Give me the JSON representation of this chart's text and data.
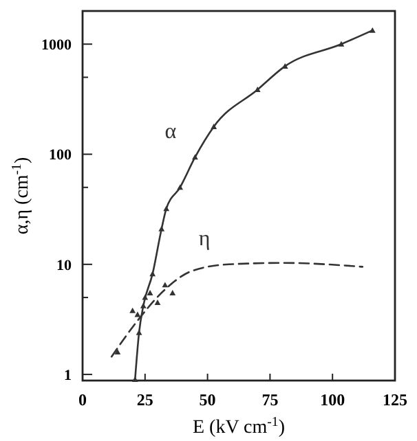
{
  "chart_data": {
    "type": "line",
    "xlabel": "E (kV cm$^{-1}$)",
    "ylabel": "α,η (cm$^{-1}$)",
    "log": "y",
    "xlim": [
      0,
      125
    ],
    "xticks": [
      0,
      25,
      50,
      75,
      100,
      125
    ],
    "ylim": [
      0.88,
      2000
    ],
    "yticks": [
      1,
      {
        "value": 5,
        "label": null
      },
      10,
      {
        "value": 50,
        "label": null
      },
      100,
      {
        "value": 500,
        "label": null
      },
      1000
    ],
    "grid": false,
    "series": [
      {
        "name": "α",
        "color": "#333333",
        "line_style": "solid",
        "marker": "triangle",
        "x": [
          21,
          22.6,
          24.3,
          28,
          31.6,
          33.5,
          39,
          45,
          52.5,
          70,
          81,
          103.5,
          116
        ],
        "values": [
          0.9,
          2.4,
          4.2,
          8.2,
          21,
          32,
          50,
          94,
          178,
          386,
          630,
          1000,
          1333
        ]
      },
      {
        "name": "η",
        "color": "#333333",
        "line_style": "dashed",
        "marker": "none",
        "x": [
          11.6,
          21.6,
          32.6,
          43.7,
          58.6,
          80.6,
          112
        ],
        "values": [
          1.45,
          3,
          5.8,
          8.7,
          10,
          10.3,
          9.5
        ]
      },
      {
        "color": "#333333",
        "type": "scatter",
        "marker": "triangle",
        "x": [
          14,
          20,
          22,
          25,
          27,
          30,
          33,
          36
        ],
        "values": [
          1.6,
          3.8,
          3.5,
          5,
          5.5,
          4.5,
          6.5,
          5.5
        ]
      }
    ]
  }
}
